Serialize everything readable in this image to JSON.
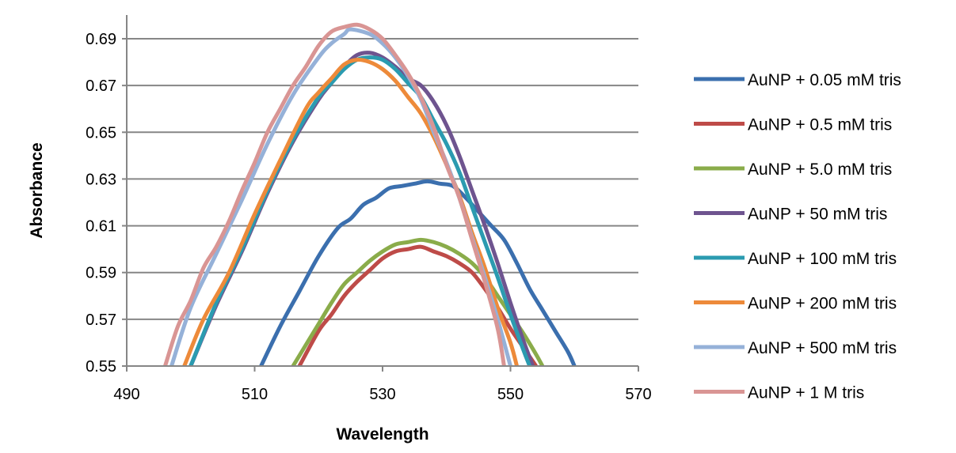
{
  "chart_data": {
    "type": "line",
    "title": "",
    "xlabel": "Wavelength",
    "ylabel": "Absorbance",
    "xlim": [
      490,
      570
    ],
    "ylim": [
      0.55,
      0.7
    ],
    "xticks": [
      "490",
      "510",
      "530",
      "550",
      "570"
    ],
    "xtick_values": [
      490,
      510,
      530,
      550,
      570
    ],
    "yticks": [
      "0.55",
      "0.57",
      "0.59",
      "0.61",
      "0.63",
      "0.65",
      "0.67",
      "0.69"
    ],
    "ytick_values": [
      0.55,
      0.57,
      0.59,
      0.61,
      0.63,
      0.65,
      0.67,
      0.69
    ],
    "grid": "horizontal",
    "legend_position": "right",
    "series": [
      {
        "name": "AuNP + 0.05 mM tris",
        "color": "#3b6fae",
        "x": [
          511,
          514,
          517,
          520,
          523,
          525,
          527,
          529,
          531,
          533,
          535,
          537,
          539,
          541,
          543,
          545,
          547,
          549,
          551,
          553,
          555,
          557,
          559,
          560
        ],
        "y": [
          0.55,
          0.567,
          0.582,
          0.597,
          0.609,
          0.613,
          0.619,
          0.622,
          0.626,
          0.627,
          0.628,
          0.629,
          0.628,
          0.627,
          0.622,
          0.616,
          0.61,
          0.604,
          0.594,
          0.583,
          0.574,
          0.565,
          0.556,
          0.55
        ]
      },
      {
        "name": "AuNP + 0.5 mM tris",
        "color": "#be4b48",
        "x": [
          517,
          520,
          522,
          524,
          526,
          528,
          530,
          532,
          534,
          536,
          538,
          540,
          542,
          544,
          546,
          548,
          550,
          552,
          554
        ],
        "y": [
          0.55,
          0.565,
          0.572,
          0.58,
          0.586,
          0.591,
          0.596,
          0.599,
          0.6,
          0.601,
          0.599,
          0.597,
          0.594,
          0.59,
          0.583,
          0.575,
          0.566,
          0.558,
          0.55
        ]
      },
      {
        "name": "AuNP + 5.0 mM tris",
        "color": "#8aac4a",
        "x": [
          516,
          518,
          520,
          522,
          524,
          526,
          528,
          530,
          532,
          534,
          536,
          538,
          540,
          542,
          544,
          546,
          548,
          550,
          552,
          554,
          555
        ],
        "y": [
          0.55,
          0.559,
          0.568,
          0.577,
          0.585,
          0.59,
          0.595,
          0.599,
          0.602,
          0.603,
          0.604,
          0.603,
          0.601,
          0.598,
          0.594,
          0.588,
          0.58,
          0.572,
          0.564,
          0.555,
          0.55
        ]
      },
      {
        "name": "AuNP + 50 mM tris",
        "color": "#6e548f",
        "x": [
          500,
          504,
          508,
          512,
          516,
          520,
          522,
          524,
          526,
          528,
          530,
          532,
          534,
          536,
          538,
          540,
          542,
          544,
          546,
          548,
          550,
          552,
          553.5
        ],
        "y": [
          0.55,
          0.576,
          0.599,
          0.624,
          0.646,
          0.664,
          0.671,
          0.678,
          0.683,
          0.684,
          0.682,
          0.678,
          0.673,
          0.67,
          0.663,
          0.653,
          0.64,
          0.625,
          0.61,
          0.594,
          0.577,
          0.561,
          0.55
        ]
      },
      {
        "name": "AuNP + 100 mM tris",
        "color": "#2b9bb0",
        "x": [
          500,
          504,
          508,
          512,
          516,
          520,
          522,
          524,
          526,
          528,
          530,
          532,
          534,
          536,
          538,
          540,
          542,
          544,
          546,
          548,
          550,
          552,
          553
        ],
        "y": [
          0.55,
          0.577,
          0.6,
          0.625,
          0.647,
          0.665,
          0.671,
          0.677,
          0.681,
          0.682,
          0.681,
          0.677,
          0.671,
          0.665,
          0.655,
          0.645,
          0.633,
          0.618,
          0.603,
          0.588,
          0.572,
          0.557,
          0.55
        ]
      },
      {
        "name": "AuNP + 200 mM tris",
        "color": "#ed8a3a",
        "x": [
          499,
          502,
          506,
          510,
          514,
          518,
          520,
          522,
          524,
          526,
          528,
          530,
          532,
          534,
          536,
          538,
          540,
          542,
          544,
          546,
          548,
          550,
          551
        ],
        "y": [
          0.55,
          0.57,
          0.59,
          0.615,
          0.638,
          0.66,
          0.667,
          0.673,
          0.679,
          0.681,
          0.68,
          0.677,
          0.672,
          0.665,
          0.658,
          0.648,
          0.636,
          0.623,
          0.607,
          0.592,
          0.575,
          0.56,
          0.55
        ]
      },
      {
        "name": "AuNP + 500 mM tris",
        "color": "#95b1d8",
        "x": [
          497,
          500,
          504,
          508,
          512,
          516,
          520,
          522,
          524,
          525,
          528,
          530,
          532,
          534,
          536,
          538,
          540,
          542,
          544,
          546,
          548,
          550
        ],
        "y": [
          0.55,
          0.575,
          0.598,
          0.621,
          0.645,
          0.666,
          0.682,
          0.688,
          0.692,
          0.694,
          0.692,
          0.688,
          0.682,
          0.674,
          0.664,
          0.65,
          0.637,
          0.622,
          0.605,
          0.588,
          0.57,
          0.55
        ]
      },
      {
        "name": "AuNP + 1 M tris",
        "color": "#d99594",
        "x": [
          496,
          498,
          500,
          502,
          504,
          506,
          508,
          510,
          512,
          514,
          516,
          518,
          520,
          522,
          524,
          526,
          528,
          530,
          532,
          534,
          536,
          538,
          540,
          542,
          544,
          546,
          548,
          549
        ],
        "y": [
          0.55,
          0.567,
          0.578,
          0.592,
          0.601,
          0.612,
          0.625,
          0.637,
          0.65,
          0.66,
          0.67,
          0.678,
          0.687,
          0.693,
          0.695,
          0.696,
          0.694,
          0.69,
          0.683,
          0.675,
          0.665,
          0.652,
          0.636,
          0.622,
          0.604,
          0.586,
          0.566,
          0.55
        ]
      }
    ]
  }
}
